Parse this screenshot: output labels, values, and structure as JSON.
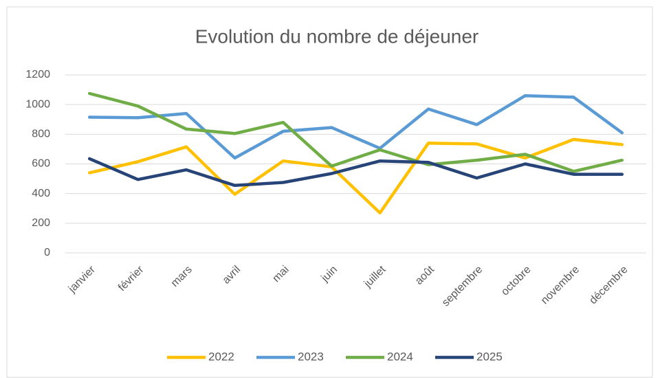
{
  "chart_data": {
    "type": "line",
    "title": "Evolution du nombre de déjeuner",
    "categories": [
      "janvier",
      "février",
      "mars",
      "avril",
      "mai",
      "juin",
      "juillet",
      "août",
      "septembre",
      "octobre",
      "novembre",
      "décembre"
    ],
    "series": [
      {
        "name": "2022",
        "color": "#ffc000",
        "values": [
          540,
          615,
          715,
          395,
          620,
          580,
          270,
          740,
          735,
          640,
          765,
          730
        ]
      },
      {
        "name": "2023",
        "color": "#5b9bd5",
        "values": [
          915,
          912,
          940,
          640,
          820,
          845,
          705,
          970,
          865,
          1060,
          1050,
          810
        ]
      },
      {
        "name": "2024",
        "color": "#70ad47",
        "values": [
          1075,
          990,
          835,
          805,
          880,
          585,
          695,
          595,
          625,
          665,
          550,
          625
        ]
      },
      {
        "name": "2025",
        "color": "#264478",
        "values": [
          635,
          495,
          560,
          455,
          475,
          535,
          620,
          610,
          505,
          600,
          530,
          530
        ]
      }
    ],
    "ylim": [
      0,
      1200
    ],
    "yticks": [
      0,
      200,
      400,
      600,
      800,
      1000,
      1200
    ],
    "grid": true,
    "legend": "bottom"
  }
}
